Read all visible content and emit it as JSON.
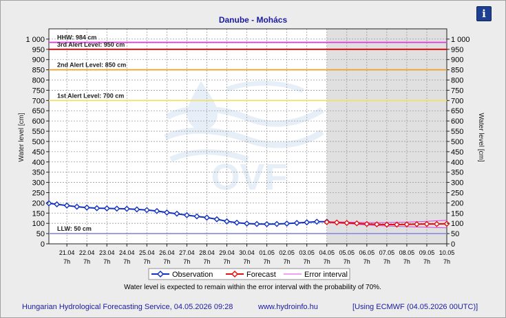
{
  "header": {
    "title": "Danube - Mohács",
    "info_glyph": "i"
  },
  "footer": {
    "service": "Hungarian Hydrological Forecasting Service, 04.05.2026 09:28",
    "url": "www.hydroinfo.hu",
    "model": "[Using ECMWF (04.05.2026  00UTC)]"
  },
  "chart_data": {
    "type": "line",
    "title": "Danube - Mohács",
    "ylabel": "Water level [cm]",
    "ylabel_right": "Water level [cm]",
    "ylim": [
      0,
      1050
    ],
    "yticks": [
      0,
      50,
      100,
      150,
      200,
      250,
      300,
      350,
      400,
      450,
      500,
      550,
      600,
      650,
      700,
      750,
      800,
      850,
      900,
      950,
      1000
    ],
    "ytick_labels": [
      "0",
      "50",
      "100",
      "150",
      "200",
      "250",
      "300",
      "350",
      "400",
      "450",
      "500",
      "550",
      "600",
      "650",
      "700",
      "750",
      "800",
      "850",
      "900",
      "950",
      "1 000"
    ],
    "x_range": [
      -0.9,
      19
    ],
    "x_dates": [
      "21.04",
      "22.04",
      "23.04",
      "24.04",
      "25.04",
      "26.04",
      "27.04",
      "28.04",
      "29.04",
      "30.04",
      "01.05",
      "02.05",
      "03.05",
      "04.05",
      "05.05",
      "06.05",
      "07.05",
      "08.05",
      "09.05",
      "10.05"
    ],
    "x_hour": "7h",
    "forecast_start": 13,
    "grid": true,
    "legend_position": "bottom",
    "levels": [
      {
        "name": "HHW: 984 cm",
        "value": 984,
        "color": "#e040e0"
      },
      {
        "name": "3rd Alert Level: 950 cm",
        "value": 950,
        "color": "#e00000"
      },
      {
        "name": "2nd Alert Level: 850 cm",
        "value": 850,
        "color": "#f0a020"
      },
      {
        "name": "1st Alert Level: 700 cm",
        "value": 700,
        "color": "#f0e070"
      },
      {
        "name": "LLW: 50 cm",
        "value": 50,
        "color": "#9090e0"
      }
    ],
    "series": [
      {
        "name": "Observation",
        "color": "#1030c0",
        "x": [
          -0.9,
          -0.5,
          0,
          0.5,
          1,
          1.5,
          2,
          2.5,
          3,
          3.5,
          4,
          4.5,
          5,
          5.5,
          6,
          6.5,
          7,
          7.5,
          8,
          8.5,
          9,
          9.5,
          10,
          10.5,
          11,
          11.5,
          12,
          12.5,
          13
        ],
        "y": [
          198,
          193,
          187,
          181,
          177,
          174,
          173,
          172,
          171,
          168,
          165,
          160,
          153,
          147,
          140,
          134,
          128,
          120,
          110,
          103,
          99,
          97,
          96,
          97,
          99,
          102,
          105,
          108,
          108
        ]
      },
      {
        "name": "Forecast",
        "color": "#e01010",
        "x": [
          13,
          13.5,
          14,
          14.5,
          15,
          15.5,
          16,
          16.5,
          17,
          17.5,
          18,
          18.5,
          19
        ],
        "y": [
          106,
          104,
          102,
          100,
          97,
          95,
          94,
          94,
          95,
          96,
          97,
          97,
          98
        ]
      },
      {
        "name": "Error interval",
        "color": "#e040e0",
        "x": [
          13,
          14,
          15,
          16,
          17,
          18,
          19
        ],
        "upper": [
          108,
          106,
          104,
          104,
          106,
          110,
          115
        ],
        "lower": [
          104,
          99,
          92,
          87,
          84,
          81,
          78
        ]
      }
    ],
    "note": "Water level is expected to remain within the error interval with the probability of 70%.",
    "watermark": "OVF"
  }
}
